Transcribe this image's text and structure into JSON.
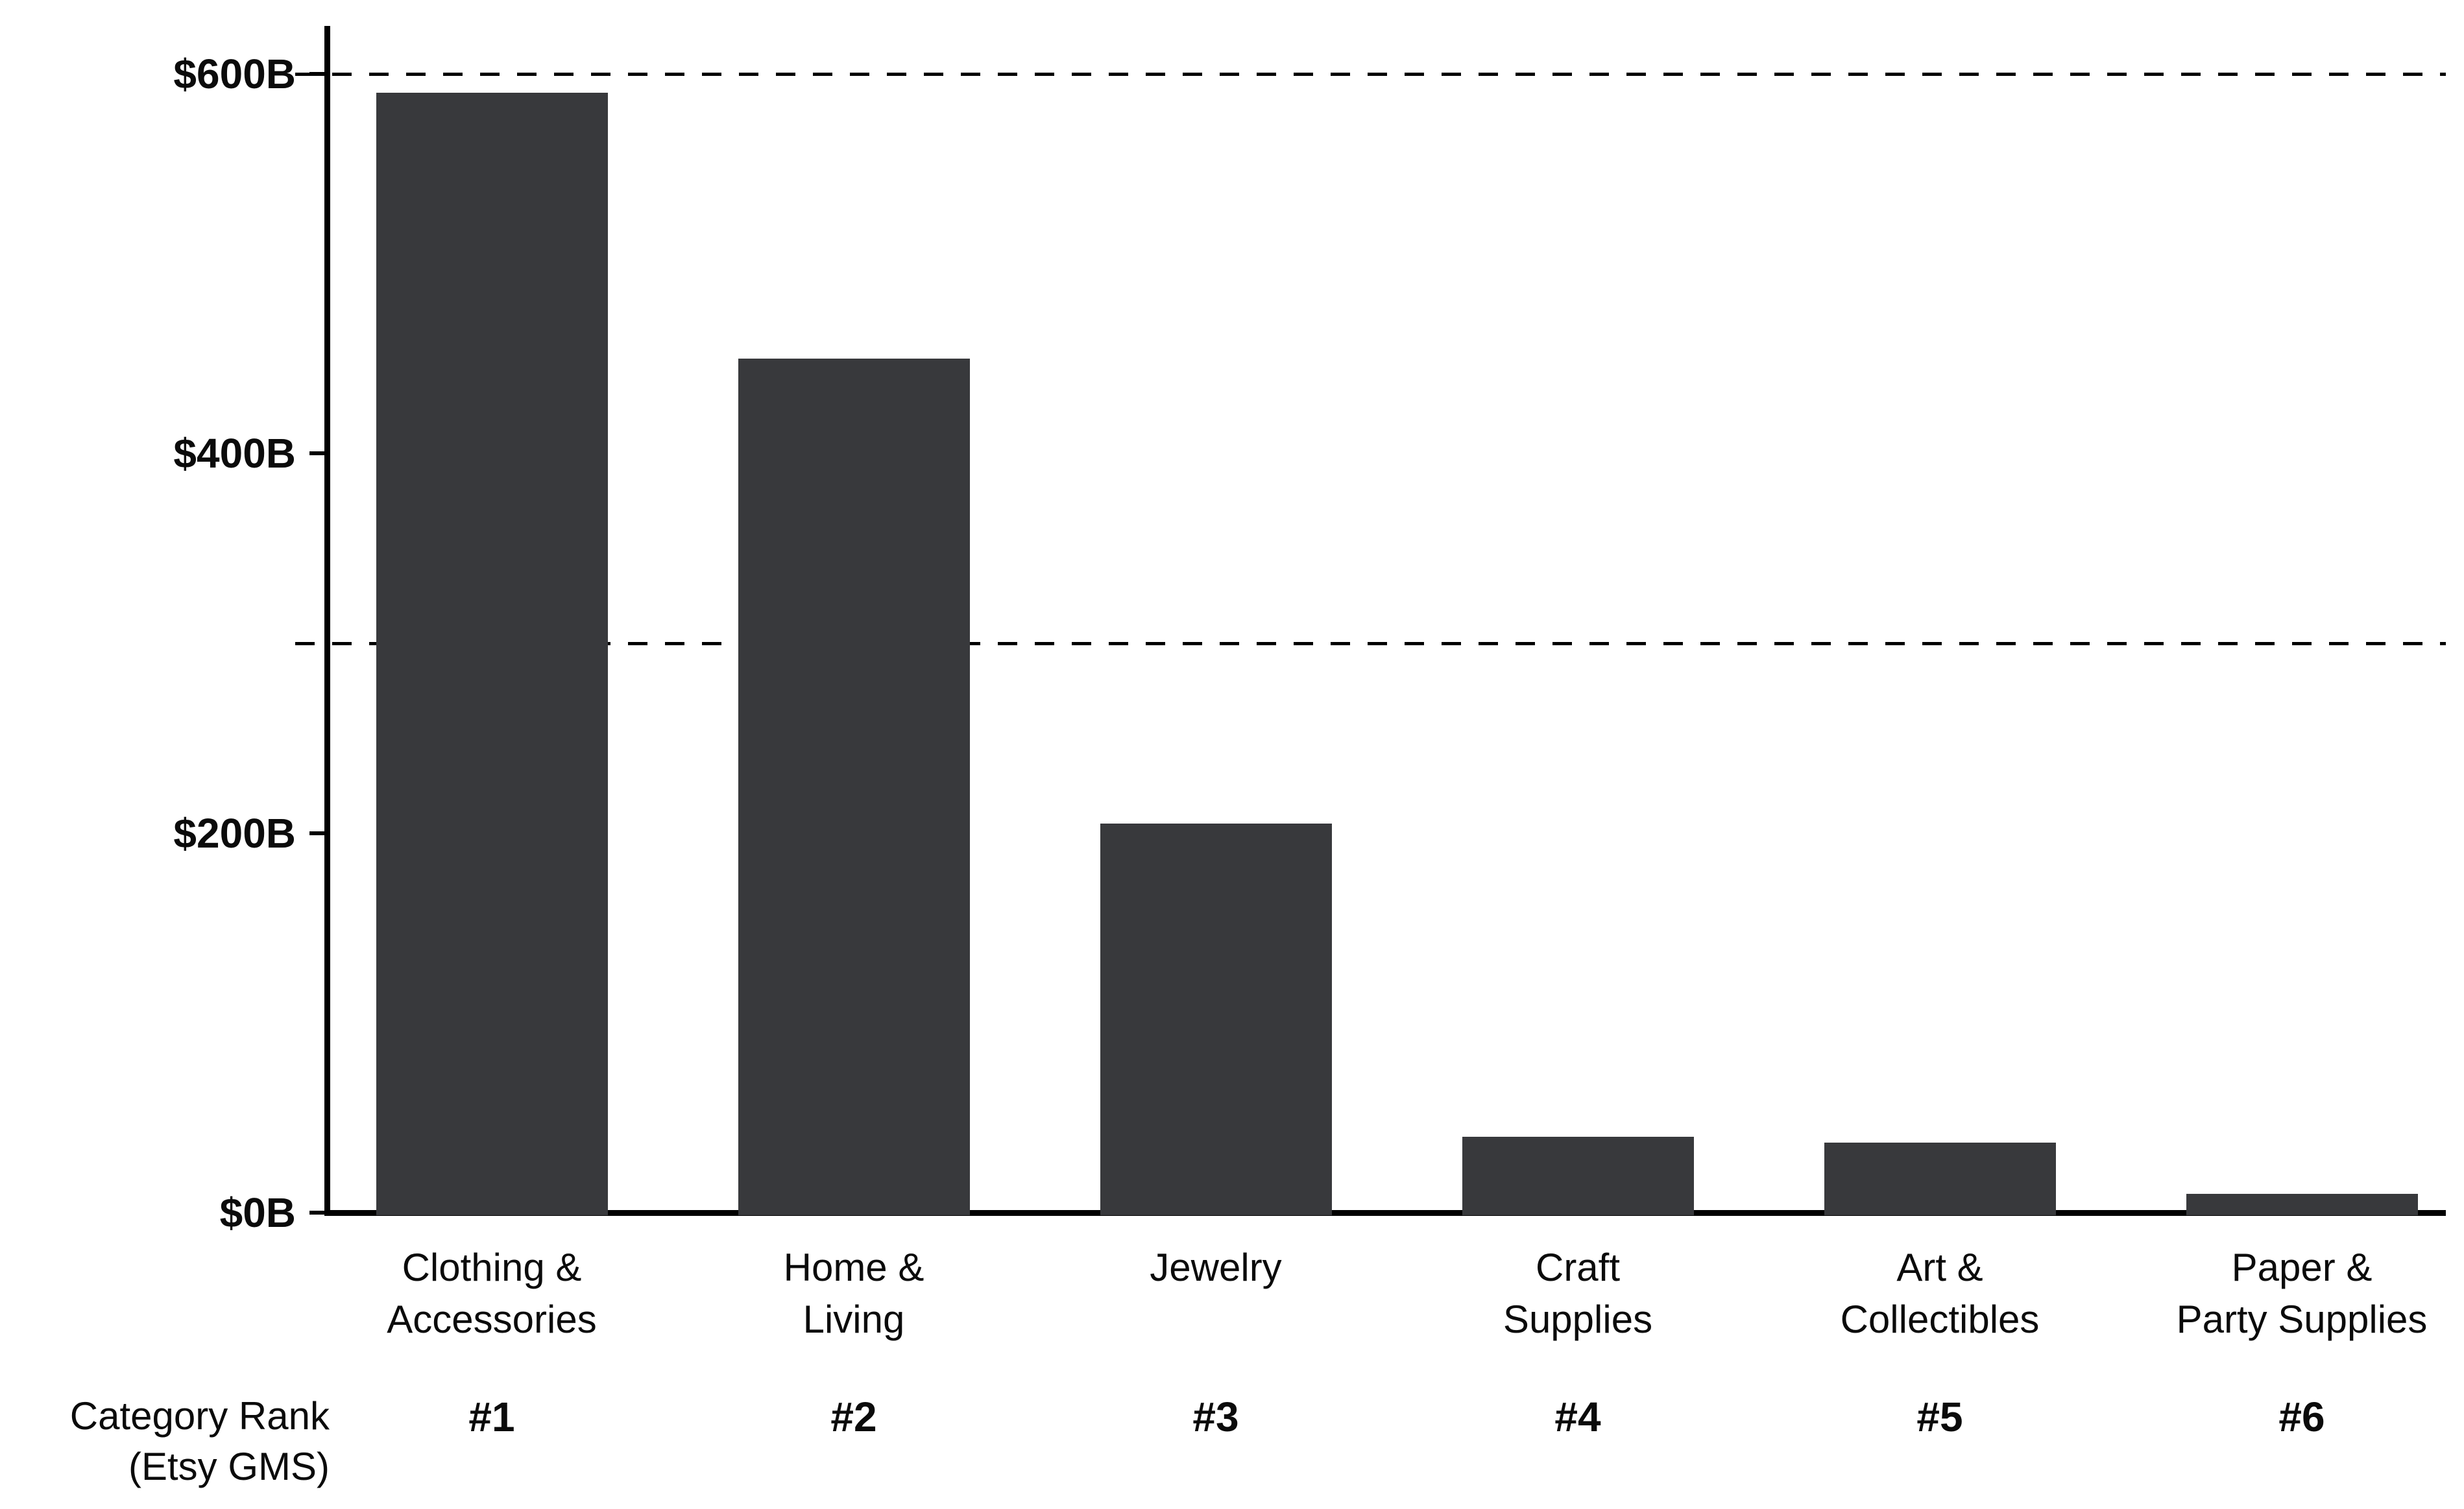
{
  "chart_data": {
    "type": "bar",
    "title": "",
    "unit": "USD billions",
    "categories": [
      "Clothing & Accessories",
      "Home & Living",
      "Jewelry",
      "Craft Supplies",
      "Art & Collectibles",
      "Paper & Party Supplies"
    ],
    "category_label_lines": [
      [
        "Clothing &",
        "Accessories"
      ],
      [
        "Home &",
        "Living"
      ],
      [
        "Jewelry"
      ],
      [
        "Craft",
        "Supplies"
      ],
      [
        "Art &",
        "Collectibles"
      ],
      [
        "Paper &",
        "Party Supplies"
      ]
    ],
    "ranks": [
      "#1",
      "#2",
      "#3",
      "#4",
      "#5",
      "#6"
    ],
    "values": [
      590,
      450,
      205,
      40,
      37,
      10
    ],
    "ylim": [
      0,
      600
    ],
    "yticks": [
      {
        "value": 600,
        "label": "$600B"
      },
      {
        "value": 400,
        "label": "$400B"
      },
      {
        "value": 200,
        "label": "$200B"
      },
      {
        "value": 0,
        "label": "$0B"
      }
    ],
    "dashed_gridlines": [
      600,
      300
    ],
    "grid": "dashed-horizontal",
    "legend": "none",
    "row_label": {
      "line1": "Category Rank",
      "line2": "(Etsy GMS)"
    },
    "colors": {
      "bar": "#38393C",
      "axis": "#000000",
      "text": "#0b0b0b",
      "background": "#ffffff"
    }
  }
}
